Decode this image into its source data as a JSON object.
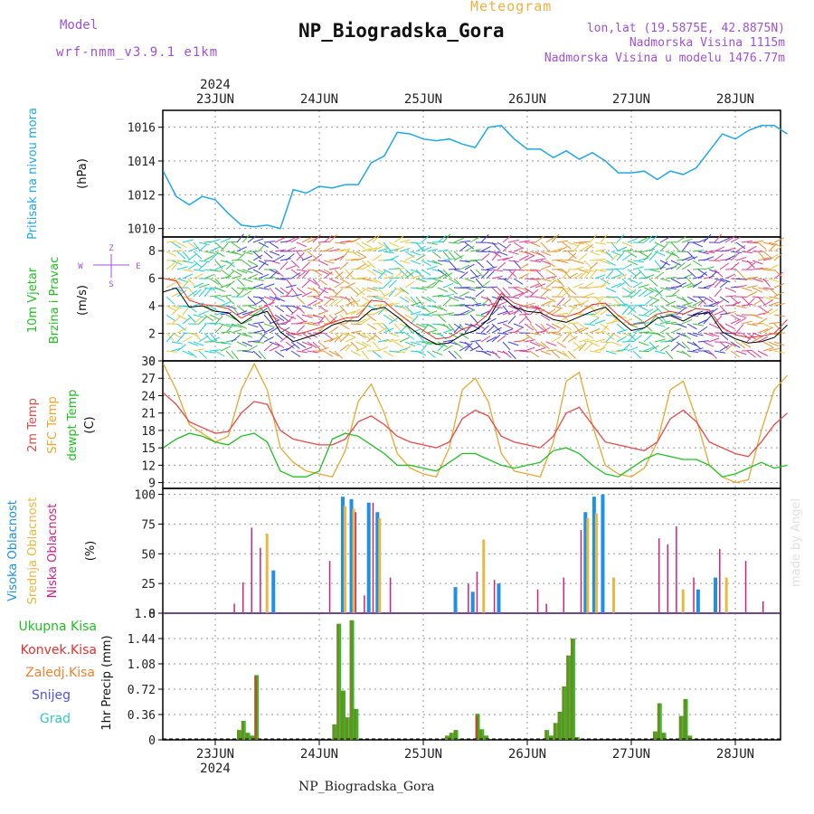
{
  "header": {
    "model_label": "Model",
    "model_name": "wrf-nmm_v3.9.1 e1km",
    "meteogram": "Meteogram",
    "station": "NP_Biogradska_Gora",
    "coords": "lon,lat (19.5875E, 42.8875N)",
    "elevation": "Nadmorska Visina 1115m",
    "elevation_model": "Nadmorska Visina u modelu 1476.77m",
    "footer": "NP_Biogradska_Gora",
    "watermark": "made by Angel"
  },
  "time_axis": {
    "year": "2024",
    "day_labels": [
      "23JUN",
      "24JUN",
      "25JUN",
      "26JUN",
      "27JUN",
      "28JUN"
    ]
  },
  "colors": {
    "pressure": "#1ea8e8",
    "wind_speed": "#000000",
    "gust": "#e83030",
    "t2m": "#e84848",
    "sfc": "#e8a830",
    "dew": "#20c020",
    "high_cloud": "#1e90e8",
    "mid_cloud": "#e8b840",
    "low_cloud": "#d02080",
    "total_precip": "#20c020",
    "conv_precip": "#e83030",
    "purple": "#a050d8"
  },
  "chart_data": [
    {
      "type": "line",
      "panel": "pressure",
      "ylabel": [
        "Pritisak na nivou mora",
        "(hPa)"
      ],
      "ylim": [
        1009.5,
        1017
      ],
      "yticks": [
        1010,
        1012,
        1014,
        1016
      ],
      "x": [
        "22JUN12",
        "22JUN15",
        "22JUN18",
        "22JUN21",
        "23JUN00",
        "23JUN03",
        "23JUN06",
        "23JUN09",
        "23JUN12",
        "23JUN15",
        "23JUN18",
        "23JUN21",
        "24JUN00",
        "24JUN03",
        "24JUN06",
        "24JUN09",
        "24JUN12",
        "24JUN15",
        "24JUN18",
        "24JUN21",
        "25JUN00",
        "25JUN03",
        "25JUN06",
        "25JUN09",
        "25JUN12",
        "25JUN15",
        "25JUN18",
        "25JUN21",
        "26JUN00",
        "26JUN03",
        "26JUN06",
        "26JUN09",
        "26JUN12",
        "26JUN15",
        "26JUN18",
        "26JUN21",
        "27JUN00",
        "27JUN03",
        "27JUN06",
        "27JUN09",
        "27JUN12",
        "27JUN15",
        "27JUN18",
        "27JUN21",
        "28JUN00",
        "28JUN03",
        "28JUN06",
        "28JUN09",
        "28JUN12"
      ],
      "series": [
        {
          "values": [
            1013.4,
            1011.9,
            1011.4,
            1011.9,
            1011.7,
            1010.9,
            1010.2,
            1010.1,
            1010.2,
            1010.0,
            1012.3,
            1012.1,
            1012.5,
            1012.4,
            1012.6,
            1012.6,
            1013.9,
            1014.3,
            1015.7,
            1015.6,
            1015.3,
            1015.2,
            1015.3,
            1015.0,
            1014.8,
            1016.0,
            1016.1,
            1015.3,
            1014.7,
            1014.7,
            1014.2,
            1014.6,
            1014.1,
            1014.5,
            1014.0,
            1013.3,
            1013.3,
            1013.4,
            1012.9,
            1013.4,
            1013.2,
            1013.6,
            1014.6,
            1015.6,
            1015.3,
            1015.8,
            1016.1,
            1016.1,
            1015.6
          ]
        }
      ]
    },
    {
      "type": "line",
      "panel": "wind",
      "ylabel": [
        "10m Vjetar",
        "Brzina i Pravac",
        "(m/s)"
      ],
      "legend_compass": [
        "Z",
        "W",
        "E",
        "S"
      ],
      "ylim": [
        0,
        9
      ],
      "yticks": [
        0,
        2,
        4,
        6,
        8
      ],
      "x": [
        "22JUN12",
        "22JUN15",
        "22JUN18",
        "22JUN21",
        "23JUN00",
        "23JUN03",
        "23JUN06",
        "23JUN09",
        "23JUN12",
        "23JUN15",
        "23JUN18",
        "23JUN21",
        "24JUN00",
        "24JUN03",
        "24JUN06",
        "24JUN09",
        "24JUN12",
        "24JUN15",
        "24JUN18",
        "24JUN21",
        "25JUN00",
        "25JUN03",
        "25JUN06",
        "25JUN09",
        "25JUN12",
        "25JUN15",
        "25JUN18",
        "25JUN21",
        "26JUN00",
        "26JUN03",
        "26JUN06",
        "26JUN09",
        "26JUN12",
        "26JUN15",
        "26JUN18",
        "26JUN21",
        "27JUN00",
        "27JUN03",
        "27JUN06",
        "27JUN09",
        "27JUN12",
        "27JUN15",
        "27JUN18",
        "27JUN21",
        "28JUN00",
        "28JUN03",
        "28JUN06",
        "28JUN09",
        "28JUN12"
      ],
      "series": [
        {
          "name": "speed",
          "values": [
            5.0,
            5.3,
            3.9,
            4.0,
            3.6,
            3.5,
            2.7,
            3.3,
            3.6,
            2.1,
            1.4,
            1.7,
            2.0,
            2.6,
            2.9,
            2.9,
            3.7,
            3.9,
            3.2,
            2.4,
            1.7,
            1.2,
            1.3,
            1.9,
            2.2,
            3.0,
            4.7,
            3.9,
            3.6,
            3.5,
            3.0,
            2.8,
            3.2,
            3.6,
            3.9,
            3.0,
            2.2,
            2.4,
            3.1,
            3.3,
            2.9,
            3.4,
            3.5,
            2.1,
            1.6,
            1.3,
            1.4,
            1.7,
            2.6
          ]
        },
        {
          "name": "gust",
          "values": [
            6.0,
            5.8,
            4.4,
            4.1,
            4.0,
            3.8,
            3.1,
            3.6,
            4.0,
            2.4,
            1.9,
            2.1,
            2.4,
            2.8,
            3.1,
            3.2,
            4.4,
            4.3,
            3.5,
            2.8,
            2.2,
            1.6,
            1.7,
            2.3,
            2.6,
            3.4,
            4.9,
            4.2,
            3.9,
            3.8,
            3.3,
            3.2,
            3.5,
            4.1,
            4.2,
            3.3,
            2.6,
            2.8,
            3.4,
            3.6,
            3.4,
            3.8,
            3.7,
            2.4,
            1.9,
            1.7,
            1.8,
            2.0,
            3.0
          ]
        }
      ]
    },
    {
      "type": "line",
      "panel": "temperature",
      "ylabel": [
        "2m Temp",
        "SFC Temp",
        "dewpt Temp",
        "(C)"
      ],
      "ylim": [
        8,
        30
      ],
      "yticks": [
        9,
        12,
        15,
        18,
        21,
        24,
        27,
        30
      ],
      "x": [
        "22JUN12",
        "22JUN15",
        "22JUN18",
        "22JUN21",
        "23JUN00",
        "23JUN03",
        "23JUN06",
        "23JUN09",
        "23JUN12",
        "23JUN15",
        "23JUN18",
        "23JUN21",
        "24JUN00",
        "24JUN03",
        "24JUN06",
        "24JUN09",
        "24JUN12",
        "24JUN15",
        "24JUN18",
        "24JUN21",
        "25JUN00",
        "25JUN03",
        "25JUN06",
        "25JUN09",
        "25JUN12",
        "25JUN15",
        "25JUN18",
        "25JUN21",
        "26JUN00",
        "26JUN03",
        "26JUN06",
        "26JUN09",
        "26JUN12",
        "26JUN15",
        "26JUN18",
        "26JUN21",
        "27JUN00",
        "27JUN03",
        "27JUN06",
        "27JUN09",
        "27JUN12",
        "27JUN15",
        "27JUN18",
        "27JUN21",
        "28JUN00",
        "28JUN03",
        "28JUN06",
        "28JUN09",
        "28JUN12"
      ],
      "series": [
        {
          "name": "2m Temp",
          "values": [
            24.5,
            22.5,
            19.5,
            18.5,
            17.5,
            17.8,
            21.0,
            23.0,
            22.5,
            18.0,
            16.5,
            16.0,
            15.5,
            15.5,
            16.5,
            19.5,
            20.5,
            19.0,
            17.0,
            16.0,
            15.5,
            15.0,
            16.0,
            20.0,
            21.5,
            20.5,
            17.0,
            16.0,
            15.5,
            15.0,
            17.0,
            21.0,
            22.0,
            19.0,
            16.0,
            15.5,
            15.0,
            14.5,
            16.0,
            20.0,
            21.5,
            19.5,
            16.0,
            15.0,
            14.0,
            13.5,
            16.0,
            19.0,
            21.0
          ]
        },
        {
          "name": "SFC Temp",
          "values": [
            29.5,
            25.0,
            19.0,
            17.5,
            16.0,
            17.0,
            25.0,
            29.5,
            25.0,
            15.0,
            12.5,
            11.0,
            10.5,
            10.0,
            14.5,
            23.0,
            26.0,
            21.0,
            14.0,
            11.5,
            10.5,
            10.0,
            15.0,
            25.0,
            27.0,
            23.0,
            14.0,
            11.0,
            10.5,
            10.0,
            16.0,
            26.5,
            28.0,
            19.0,
            12.0,
            10.5,
            10.0,
            11.5,
            16.0,
            25.0,
            26.5,
            20.0,
            12.0,
            10.0,
            9.0,
            9.5,
            18.0,
            25.0,
            27.5
          ]
        },
        {
          "name": "dewpt Temp",
          "values": [
            15.0,
            16.5,
            17.5,
            17.0,
            16.0,
            15.5,
            17.0,
            17.5,
            16.0,
            11.0,
            10.0,
            10.0,
            11.0,
            16.5,
            17.5,
            17.0,
            15.5,
            14.0,
            12.0,
            12.0,
            11.5,
            11.0,
            12.5,
            14.0,
            14.0,
            13.0,
            12.0,
            11.5,
            12.0,
            12.5,
            14.5,
            15.0,
            14.0,
            12.0,
            10.5,
            10.0,
            11.5,
            13.0,
            14.0,
            13.5,
            13.0,
            13.0,
            12.0,
            10.0,
            10.5,
            11.5,
            12.5,
            11.5,
            12.0
          ]
        }
      ]
    },
    {
      "type": "bar",
      "panel": "cloud",
      "ylabel": [
        "Visoka Oblacnost",
        "Srednja Oblacnost",
        "Niska Oblacnost",
        "(%)"
      ],
      "ylim": [
        0,
        105
      ],
      "yticks": [
        0,
        25,
        50,
        75,
        100
      ],
      "x": [
        "23JUN03",
        "23JUN05",
        "23JUN07",
        "23JUN09",
        "23JUN11",
        "23JUN13",
        "24JUN01",
        "24JUN05",
        "24JUN07",
        "24JUN09",
        "24JUN11",
        "24JUN13",
        "24JUN15",
        "25JUN07",
        "25JUN09",
        "25JUN11",
        "25JUN13",
        "25JUN15",
        "25JUN17",
        "26JUN01",
        "26JUN03",
        "26JUN07",
        "26JUN11",
        "26JUN13",
        "26JUN15",
        "26JUN17",
        "26JUN19",
        "27JUN05",
        "27JUN07",
        "27JUN09",
        "27JUN11",
        "27JUN13",
        "27JUN15",
        "27JUN19",
        "27JUN21",
        "28JUN01",
        "28JUN05"
      ],
      "series": [
        {
          "name": "Visoka Oblacnost",
          "values": [
            0,
            0,
            0,
            0,
            0,
            36,
            0,
            98,
            96,
            0,
            93,
            85,
            0,
            22,
            0,
            18,
            0,
            0,
            25,
            0,
            0,
            0,
            0,
            85,
            98,
            100,
            0,
            0,
            0,
            0,
            0,
            0,
            20,
            30,
            0,
            0,
            0
          ]
        },
        {
          "name": "Srednja Oblacnost",
          "values": [
            0,
            0,
            0,
            0,
            67,
            0,
            0,
            90,
            88,
            0,
            0,
            80,
            0,
            0,
            0,
            0,
            62,
            0,
            0,
            0,
            0,
            0,
            0,
            80,
            84,
            0,
            30,
            0,
            0,
            0,
            20,
            0,
            0,
            0,
            30,
            0,
            0
          ]
        },
        {
          "name": "Niska Oblacnost",
          "values": [
            8,
            26,
            72,
            55,
            0,
            0,
            44,
            0,
            85,
            15,
            93,
            0,
            30,
            0,
            25,
            35,
            0,
            28,
            0,
            20,
            8,
            30,
            70,
            0,
            0,
            0,
            0,
            63,
            58,
            73,
            0,
            30,
            0,
            54,
            0,
            44,
            10
          ]
        }
      ]
    },
    {
      "type": "bar",
      "panel": "precip",
      "ylabel": [
        "Ukupna Kisa",
        "Konvek.Kisa",
        "Zaledj.Kisa",
        "Snijeg",
        "Grad",
        "1hr Precip (mm)"
      ],
      "ylim": [
        0,
        1.8
      ],
      "yticks": [
        0,
        0.36,
        0.72,
        1.08,
        1.44,
        1.8
      ],
      "x": [
        "23JUN05",
        "23JUN06",
        "23JUN07",
        "23JUN08",
        "23JUN09",
        "23JUN10",
        "24JUN03",
        "24JUN04",
        "24JUN05",
        "24JUN06",
        "24JUN07",
        "24JUN08",
        "24JUN09",
        "25JUN05",
        "25JUN06",
        "25JUN07",
        "25JUN12",
        "25JUN13",
        "25JUN14",
        "26JUN04",
        "26JUN05",
        "26JUN06",
        "26JUN07",
        "26JUN08",
        "26JUN09",
        "26JUN10",
        "26JUN11",
        "27JUN05",
        "27JUN06",
        "27JUN07",
        "27JUN08",
        "27JUN11",
        "27JUN12",
        "27JUN13"
      ],
      "series": [
        {
          "name": "Ukupna Kisa",
          "values": [
            0.14,
            0.27,
            0.1,
            0.06,
            0.92,
            0.0,
            0.22,
            1.65,
            0.7,
            0.32,
            1.7,
            0.44,
            0.0,
            0.06,
            0.1,
            0.14,
            0.37,
            0.15,
            0.06,
            0.14,
            0.06,
            0.24,
            0.4,
            0.76,
            1.2,
            1.44,
            0.04,
            0.12,
            0.52,
            0.1,
            0.0,
            0.34,
            0.58,
            0.06
          ]
        },
        {
          "name": "Konvek.Kisa",
          "values": [
            0.0,
            0.0,
            0.0,
            0.0,
            0.9,
            0.0,
            0.0,
            0.0,
            0.0,
            0.0,
            0.0,
            0.0,
            0.0,
            0.0,
            0.0,
            0.0,
            0.34,
            0.0,
            0.0,
            0.0,
            0.0,
            0.0,
            0.0,
            0.0,
            0.0,
            0.0,
            0.0,
            0.0,
            0.0,
            0.0,
            0.0,
            0.0,
            0.0,
            0.0
          ]
        }
      ]
    }
  ]
}
